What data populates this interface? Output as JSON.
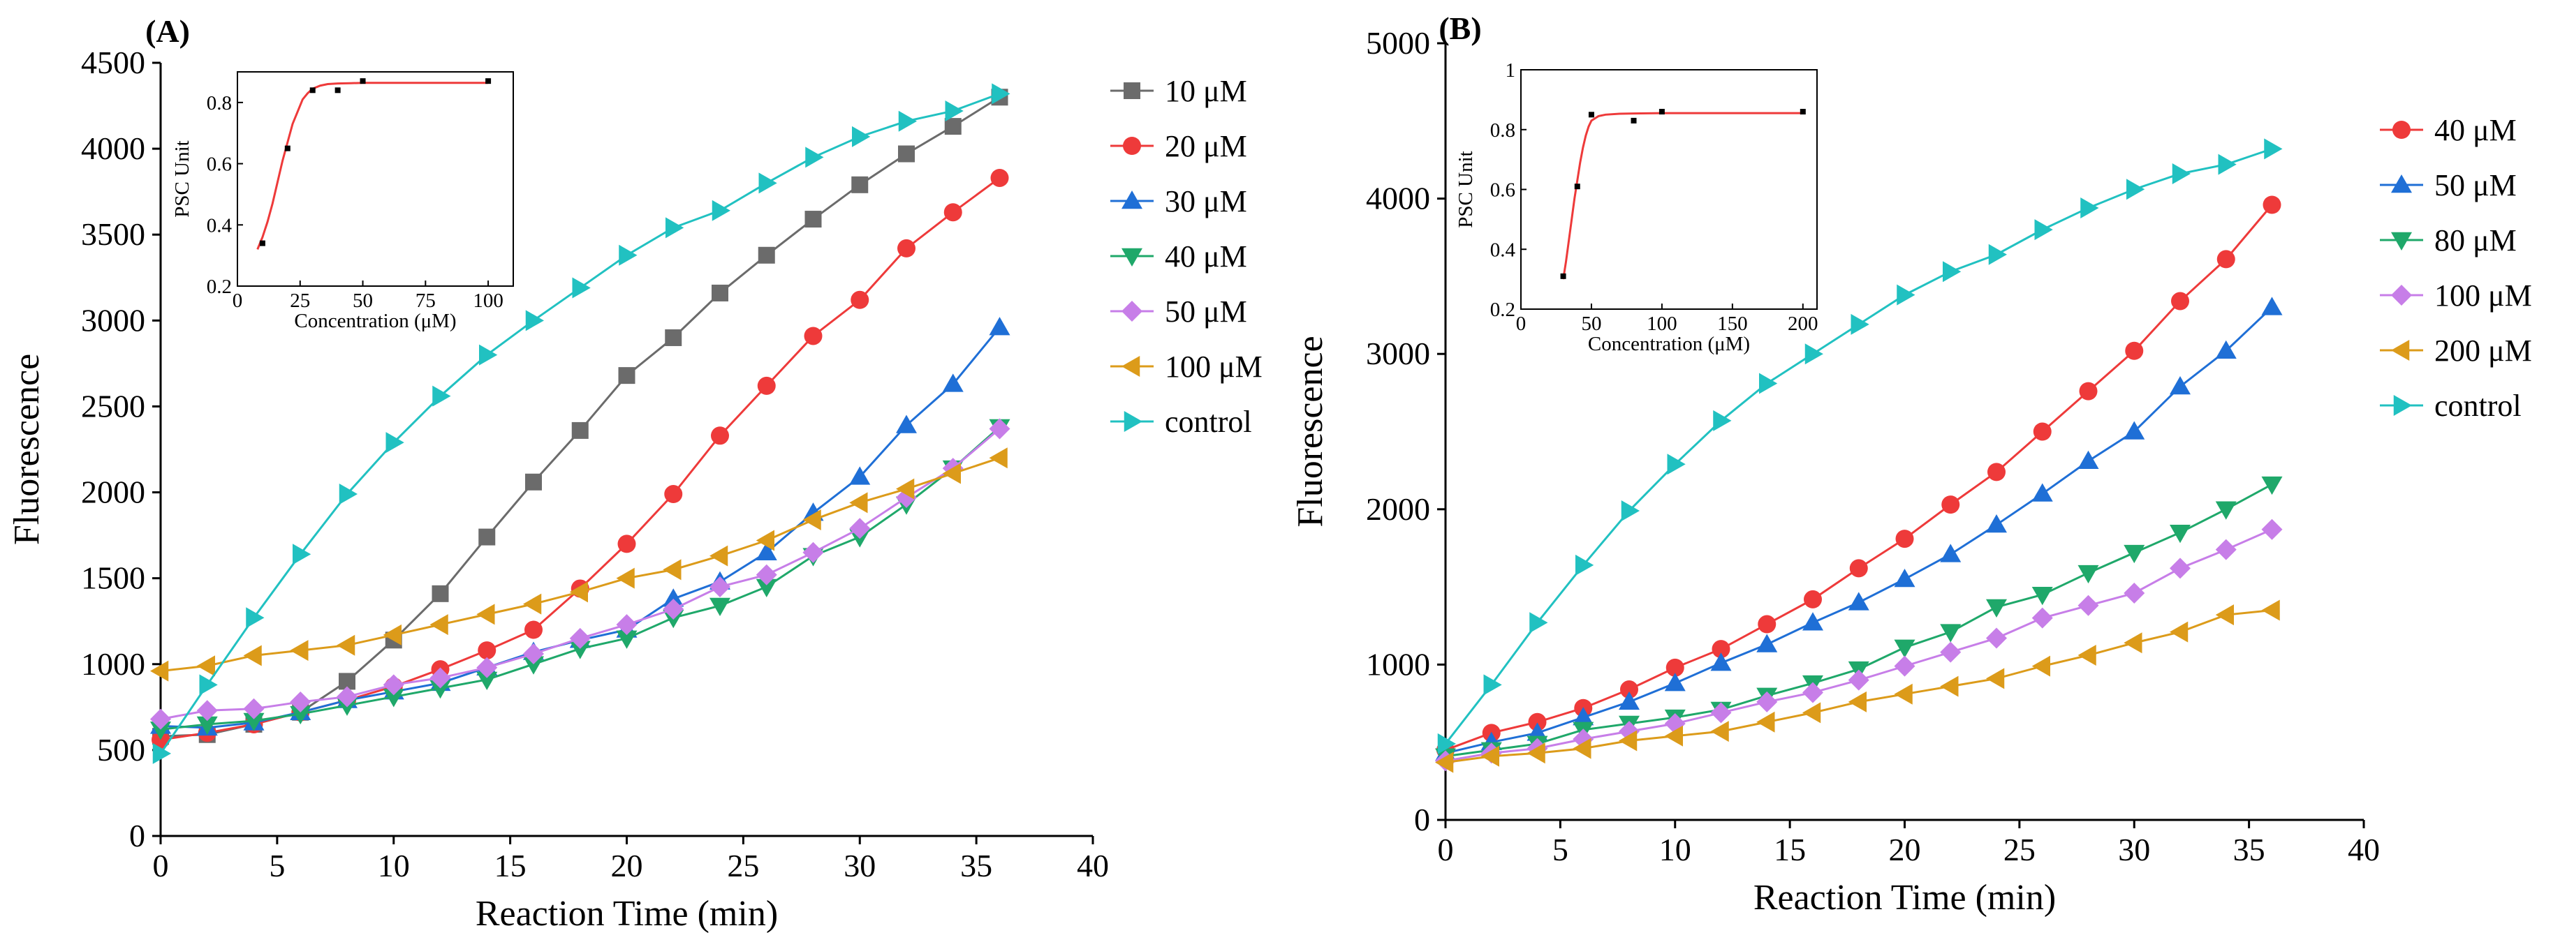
{
  "chart_data": [
    {
      "type": "line",
      "panel_label": "(A)",
      "xlabel": "Reaction Time (min)",
      "ylabel": "Fluorescence",
      "xlim": [
        0,
        40
      ],
      "ylim": [
        0,
        4500
      ],
      "xticks": [
        0,
        5,
        10,
        15,
        20,
        25,
        30,
        35,
        40
      ],
      "yticks": [
        0,
        500,
        1000,
        1500,
        2000,
        2500,
        3000,
        3500,
        4000,
        4500
      ],
      "legend_position": "right",
      "x": [
        0,
        2,
        4,
        6,
        8,
        10,
        12,
        14,
        16,
        18,
        20,
        22,
        24,
        26,
        28,
        30,
        32,
        34,
        36
      ],
      "series": [
        {
          "name": "10 μM",
          "color": "#6b6b6b",
          "marker": "square",
          "values": [
            580,
            590,
            650,
            720,
            900,
            1140,
            1410,
            1740,
            2060,
            2360,
            2680,
            2900,
            3160,
            3380,
            3590,
            3790,
            3970,
            4130,
            4300
          ]
        },
        {
          "name": "20 μM",
          "color": "#ee3a3a",
          "marker": "circle",
          "values": [
            560,
            600,
            650,
            720,
            790,
            870,
            970,
            1080,
            1200,
            1440,
            1700,
            1990,
            2330,
            2620,
            2910,
            3120,
            3420,
            3630,
            3830
          ]
        },
        {
          "name": "30 μM",
          "color": "#1f6fd6",
          "marker": "triangle-up",
          "values": [
            640,
            630,
            660,
            720,
            790,
            840,
            890,
            980,
            1070,
            1140,
            1200,
            1380,
            1480,
            1650,
            1880,
            2090,
            2390,
            2630,
            2960
          ]
        },
        {
          "name": "40 μM",
          "color": "#1fa86a",
          "marker": "triangle-down",
          "values": [
            620,
            650,
            670,
            710,
            760,
            810,
            860,
            910,
            1000,
            1090,
            1150,
            1270,
            1340,
            1450,
            1630,
            1740,
            1930,
            2140,
            2380
          ]
        },
        {
          "name": "50 μM",
          "color": "#c77ee8",
          "marker": "diamond",
          "values": [
            680,
            730,
            740,
            780,
            810,
            880,
            920,
            980,
            1060,
            1150,
            1230,
            1320,
            1450,
            1520,
            1650,
            1790,
            1970,
            2140,
            2370
          ]
        },
        {
          "name": "100 μM",
          "color": "#dc9b1a",
          "marker": "triangle-left",
          "values": [
            960,
            990,
            1050,
            1080,
            1110,
            1170,
            1230,
            1290,
            1350,
            1420,
            1500,
            1550,
            1630,
            1720,
            1840,
            1940,
            2020,
            2110,
            2200
          ]
        },
        {
          "name": "control",
          "color": "#21c1c1",
          "marker": "triangle-right",
          "values": [
            480,
            880,
            1270,
            1640,
            1990,
            2290,
            2560,
            2800,
            3000,
            3190,
            3380,
            3540,
            3640,
            3800,
            3950,
            4070,
            4160,
            4220,
            4320
          ]
        }
      ],
      "inset": {
        "type": "scatter+fit",
        "xlabel": "Concentration (μM)",
        "ylabel": "PSC Unit",
        "xlim": [
          0,
          110
        ],
        "ylim": [
          0.2,
          0.9
        ],
        "xticks": [
          0,
          25,
          50,
          75,
          100
        ],
        "yticks": [
          0.2,
          0.4,
          0.6,
          0.8
        ],
        "points": {
          "x": [
            10,
            20,
            30,
            40,
            50,
            100
          ],
          "y": [
            0.34,
            0.65,
            0.84,
            0.84,
            0.87,
            0.87
          ]
        },
        "fit_color": "#ee3a3a",
        "fit": {
          "x": [
            8,
            10,
            12,
            14,
            16,
            18,
            20,
            22,
            24,
            26,
            28,
            30,
            33,
            36,
            40,
            45,
            50,
            60,
            70,
            80,
            90,
            100
          ],
          "y": [
            0.32,
            0.36,
            0.41,
            0.47,
            0.54,
            0.61,
            0.67,
            0.73,
            0.77,
            0.81,
            0.83,
            0.845,
            0.855,
            0.86,
            0.862,
            0.863,
            0.864,
            0.864,
            0.864,
            0.864,
            0.864,
            0.864
          ]
        }
      }
    },
    {
      "type": "line",
      "panel_label": "(B)",
      "xlabel": "Reaction Time (min)",
      "ylabel": "Fluorescence",
      "xlim": [
        0,
        40
      ],
      "ylim": [
        0,
        5000
      ],
      "xticks": [
        0,
        5,
        10,
        15,
        20,
        25,
        30,
        35,
        40
      ],
      "yticks": [
        0,
        1000,
        2000,
        3000,
        4000,
        5000
      ],
      "legend_position": "right",
      "x": [
        0,
        2,
        4,
        6,
        8,
        10,
        12,
        14,
        16,
        18,
        20,
        22,
        24,
        26,
        28,
        30,
        32,
        34,
        36
      ],
      "series": [
        {
          "name": "40 μM",
          "color": "#ee3a3a",
          "marker": "circle",
          "values": [
            450,
            560,
            630,
            720,
            840,
            980,
            1100,
            1260,
            1420,
            1620,
            1810,
            2030,
            2240,
            2500,
            2760,
            3020,
            3340,
            3610,
            3960
          ]
        },
        {
          "name": "50 μM",
          "color": "#1f6fd6",
          "marker": "triangle-up",
          "values": [
            430,
            500,
            560,
            660,
            760,
            880,
            1010,
            1130,
            1270,
            1400,
            1550,
            1710,
            1900,
            2100,
            2310,
            2500,
            2790,
            3020,
            3300
          ]
        },
        {
          "name": "80 μM",
          "color": "#1fa86a",
          "marker": "triangle-down",
          "values": [
            410,
            450,
            490,
            580,
            620,
            660,
            710,
            800,
            880,
            970,
            1110,
            1210,
            1370,
            1450,
            1590,
            1720,
            1850,
            2000,
            2160
          ]
        },
        {
          "name": "100 μM",
          "color": "#c77ee8",
          "marker": "diamond",
          "values": [
            380,
            430,
            460,
            520,
            570,
            620,
            690,
            760,
            820,
            900,
            990,
            1080,
            1170,
            1300,
            1380,
            1460,
            1620,
            1740,
            1870
          ]
        },
        {
          "name": "200 μM",
          "color": "#dc9b1a",
          "marker": "triangle-left",
          "values": [
            370,
            410,
            430,
            460,
            510,
            540,
            570,
            630,
            690,
            760,
            810,
            860,
            910,
            990,
            1060,
            1140,
            1210,
            1320,
            1350
          ]
        },
        {
          "name": "control",
          "color": "#21c1c1",
          "marker": "triangle-right",
          "values": [
            490,
            870,
            1270,
            1640,
            1990,
            2290,
            2570,
            2810,
            3000,
            3190,
            3380,
            3530,
            3640,
            3800,
            3940,
            4060,
            4160,
            4220,
            4320
          ]
        }
      ],
      "inset": {
        "type": "scatter+fit",
        "xlabel": "Concentration (μM)",
        "ylabel": "PSC Unit",
        "xlim": [
          0,
          210
        ],
        "ylim": [
          0.2,
          1.0
        ],
        "xticks": [
          0,
          50,
          100,
          150,
          200
        ],
        "yticks": [
          0.2,
          0.4,
          0.6,
          0.8,
          1.0
        ],
        "points": {
          "x": [
            30,
            40,
            50,
            80,
            100,
            200
          ],
          "y": [
            0.31,
            0.61,
            0.85,
            0.83,
            0.86,
            0.86
          ]
        },
        "fit_color": "#ee3a3a",
        "fit": {
          "x": [
            30,
            32,
            34,
            36,
            38,
            40,
            42,
            44,
            46,
            48,
            50,
            55,
            60,
            70,
            80,
            100,
            130,
            160,
            200
          ],
          "y": [
            0.3,
            0.36,
            0.43,
            0.5,
            0.57,
            0.63,
            0.69,
            0.74,
            0.78,
            0.81,
            0.83,
            0.845,
            0.85,
            0.853,
            0.854,
            0.855,
            0.855,
            0.855,
            0.855
          ]
        }
      }
    }
  ]
}
